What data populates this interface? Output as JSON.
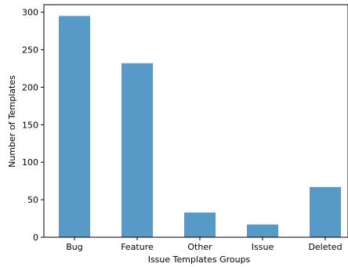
{
  "chart_data": {
    "type": "bar",
    "categories": [
      "Bug",
      "Feature",
      "Other",
      "Issue",
      "Deleted"
    ],
    "values": [
      295,
      232,
      33,
      17,
      67
    ],
    "title": "",
    "xlabel": "Issue Templates Groups",
    "ylabel": "Number of Templates",
    "ylim": [
      0,
      310
    ],
    "yticks": [
      0,
      50,
      100,
      150,
      200,
      250,
      300
    ],
    "grid": false,
    "legend": "none",
    "bar_color": "#5799c7"
  }
}
